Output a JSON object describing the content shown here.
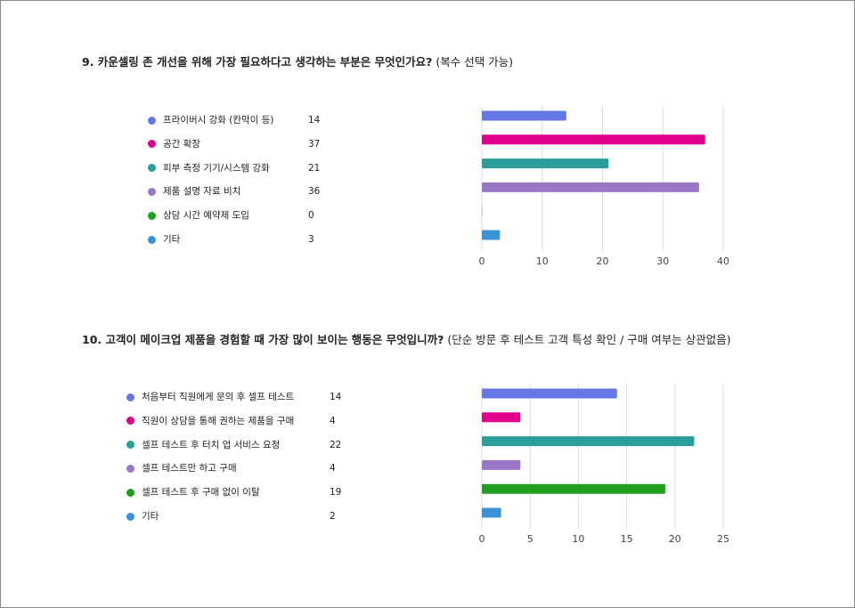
{
  "chart_data": [
    {
      "type": "bar",
      "orientation": "horizontal",
      "title": "9. 카운셀링 존 개선을 위해 가장 필요하다고 생각하는 부분은 무엇인가요?",
      "subtitle": "(복수 선택 가능)",
      "categories": [
        "프라이버시 강화 (칸막이 등)",
        "공간 확장",
        "피부 측정 기기/시스템 강화",
        "제품 설명 자료 비치",
        "상담 시간 예약제 도입",
        "기타"
      ],
      "values": [
        14,
        37,
        21,
        36,
        0,
        3
      ],
      "colors": [
        "#6677e6",
        "#e0008c",
        "#2b9e9a",
        "#9977c7",
        "#1fa01f",
        "#3b92d8"
      ],
      "xlim": [
        0,
        40
      ],
      "ticks": [
        "0",
        "10",
        "20",
        "30",
        "40"
      ],
      "grid": true
    },
    {
      "type": "bar",
      "orientation": "horizontal",
      "title": "10. 고객이 메이크업 제품을 경험할 때 가장 많이 보이는 행동은 무엇입니까?",
      "subtitle": "(단순 방문 후 테스트 고객 특성 확인 / 구매 여부는 상관없음)",
      "categories": [
        "처음부터 직원에게 문의 후 셀프 테스트",
        "직원이 상담을 통해 권하는 제품을 구매",
        "셀프 테스트 후 터치 업 서비스 요청",
        "셀프 테스트만 하고 구매",
        "셀프 테스트 후 구매 없이 이탈",
        "기타"
      ],
      "values": [
        14,
        4,
        22,
        4,
        19,
        2
      ],
      "colors": [
        "#6677e6",
        "#e0008c",
        "#2b9e9a",
        "#9977c7",
        "#1fa01f",
        "#3b92d8"
      ],
      "xlim": [
        0,
        25
      ],
      "ticks": [
        "0",
        "5",
        "10",
        "15",
        "20",
        "25"
      ],
      "grid": true
    }
  ]
}
